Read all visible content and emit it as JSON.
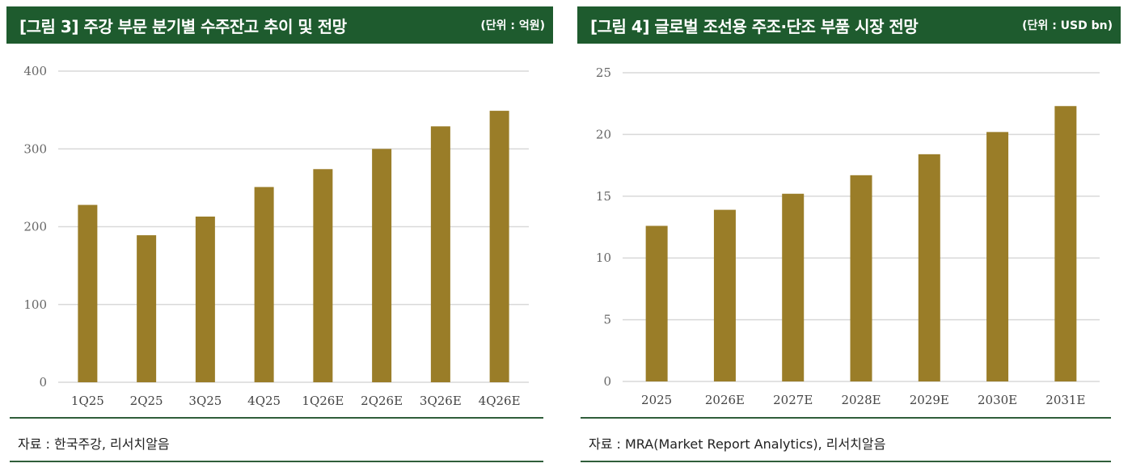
{
  "colors": {
    "header_bg": "#1e5b2e",
    "bar": "#9a7d28",
    "grid": "#d9d9d9",
    "rule": "#2f5e3a"
  },
  "left": {
    "title": "[그림 3] 주강 부문 분기별 수주잔고 추이 및 전망",
    "unit": "(단위 : 억원)",
    "source": "자료 : 한국주강, 리서치알음"
  },
  "right": {
    "title": "[그림 4] 글로벌 조선용 주조·단조 부품 시장 전망",
    "unit": "(단위 : USD bn)",
    "source": "자료 : MRA(Market Report Analytics), 리서치알음"
  },
  "chart_data": [
    {
      "type": "bar",
      "title": "[그림 3] 주강 부문 분기별 수주잔고 추이 및 전망",
      "unit": "억원",
      "categories": [
        "1Q25",
        "2Q25",
        "3Q25",
        "4Q25",
        "1Q26E",
        "2Q26E",
        "3Q26E",
        "4Q26E"
      ],
      "values": [
        228,
        189,
        213,
        251,
        274,
        300,
        329,
        349
      ],
      "ylim": [
        0,
        400
      ],
      "yticks": [
        0,
        100,
        200,
        300,
        400
      ],
      "grid": true
    },
    {
      "type": "bar",
      "title": "[그림 4] 글로벌 조선용 주조·단조 부품 시장 전망",
      "unit": "USD bn",
      "categories": [
        "2025",
        "2026E",
        "2027E",
        "2028E",
        "2029E",
        "2030E",
        "2031E"
      ],
      "values": [
        12.6,
        13.9,
        15.2,
        16.7,
        18.4,
        20.2,
        22.3
      ],
      "ylim": [
        0,
        25
      ],
      "yticks": [
        0,
        5,
        10,
        15,
        20,
        25
      ],
      "grid": true
    }
  ]
}
